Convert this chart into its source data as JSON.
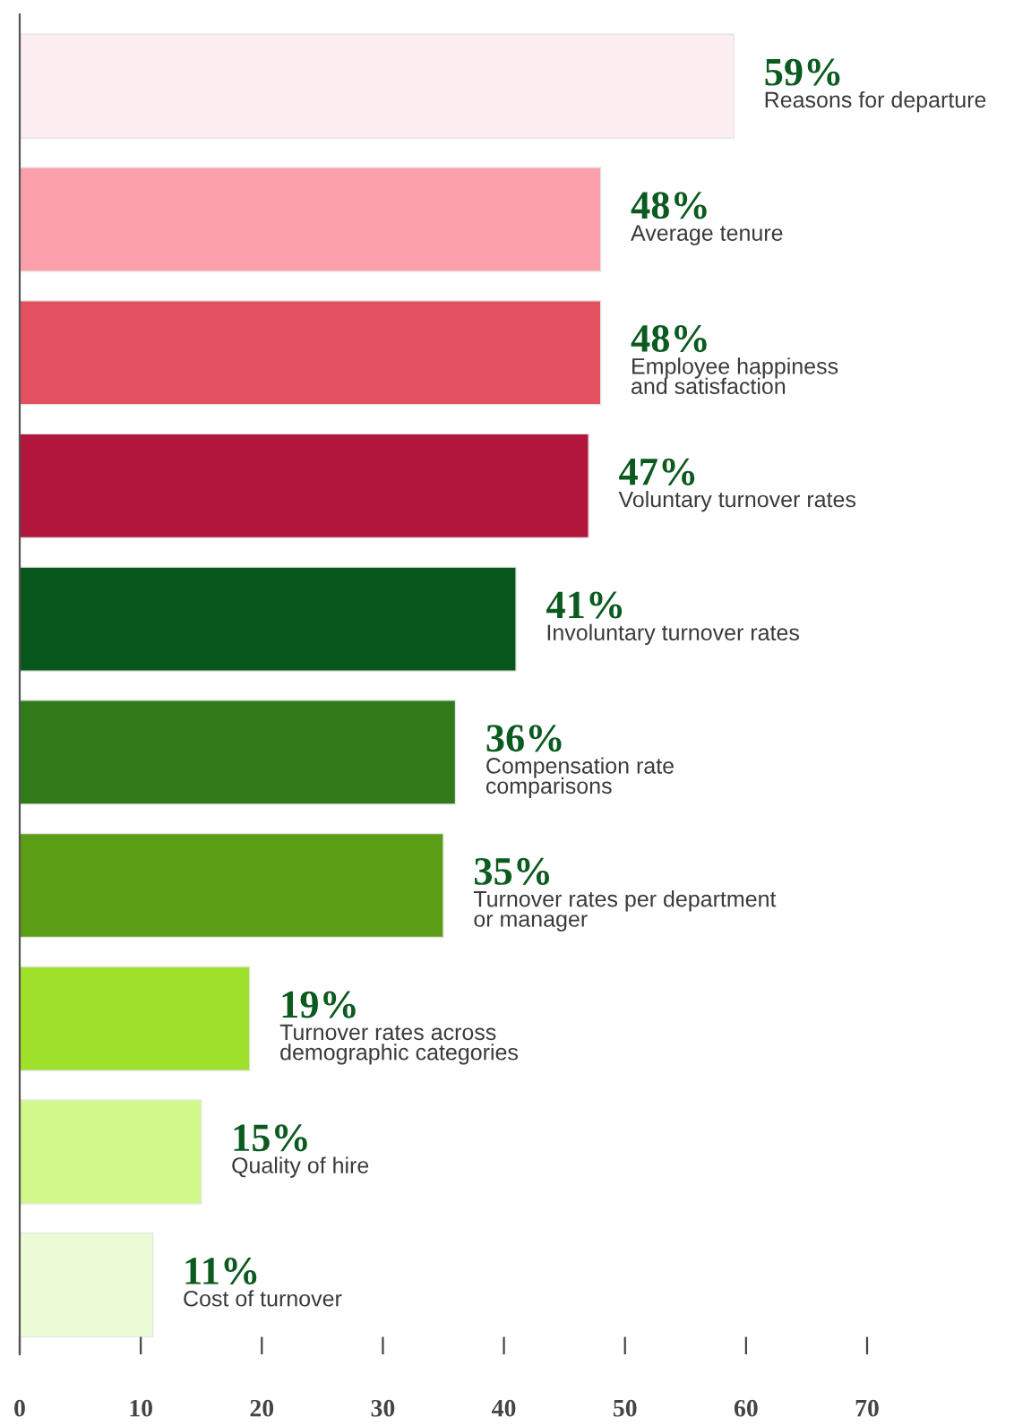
{
  "chart_data": {
    "type": "bar",
    "orientation": "horizontal",
    "categories": [
      "Reasons for departure",
      "Average tenure",
      "Employee happiness\nand satisfaction",
      "Voluntary turnover rates",
      "Involuntary turnover rates",
      "Compensation rate\ncomparisons",
      "Turnover rates per department\nor manager",
      "Turnover rates across\ndemographic categories",
      "Quality of hire",
      "Cost of turnover"
    ],
    "values": [
      59,
      48,
      48,
      47,
      41,
      36,
      35,
      19,
      15,
      11
    ],
    "colors": [
      "#fcedf0",
      "#fba0aa",
      "#e3505f",
      "#b2163c",
      "#07561c",
      "#317a19",
      "#5b9e15",
      "#9ee02a",
      "#d0f88b",
      "#ebfbd6"
    ],
    "value_labels": [
      "59%",
      "48%",
      "48%",
      "47%",
      "41%",
      "36%",
      "35%",
      "19%",
      "15%",
      "11%"
    ],
    "xlim": [
      0,
      70
    ],
    "xticks": [
      0,
      10,
      20,
      30,
      40,
      50,
      60,
      70
    ],
    "grid": false,
    "legend": false
  }
}
